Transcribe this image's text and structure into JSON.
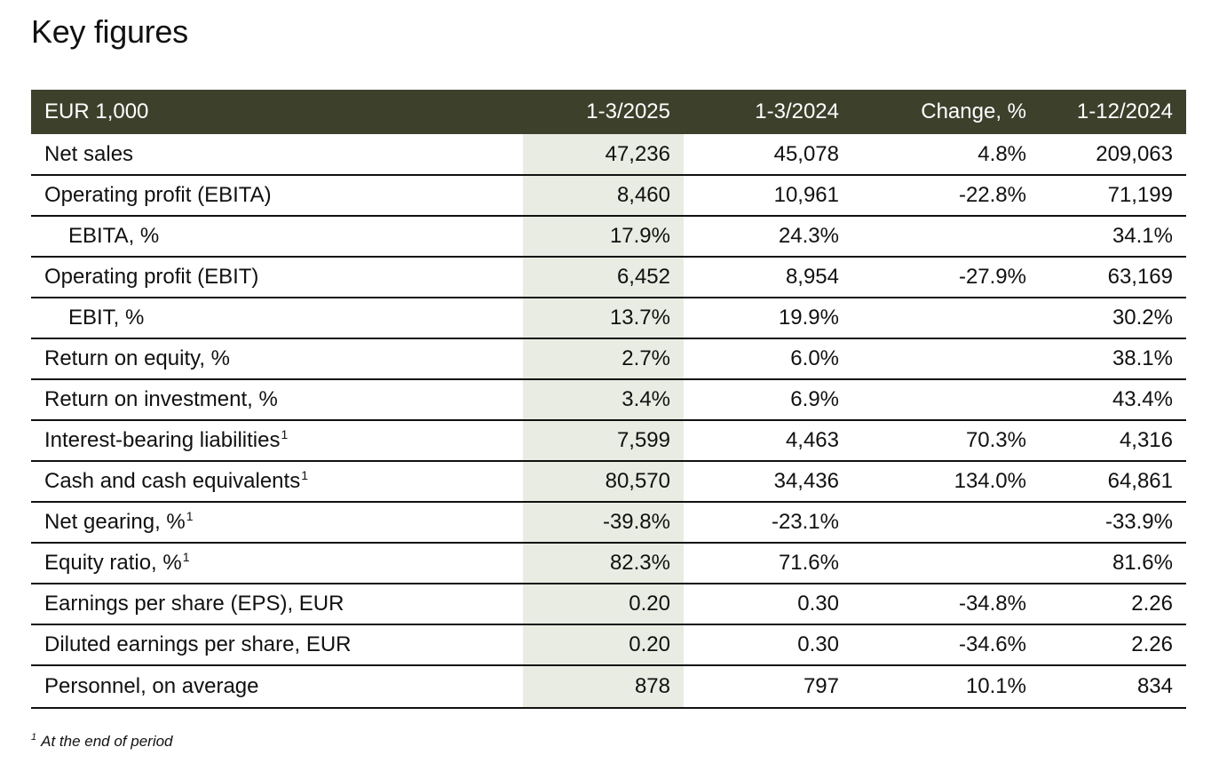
{
  "title": "Key figures",
  "table": {
    "headers": [
      "EUR 1,000",
      "1-3/2025",
      "1-3/2024",
      "Change, %",
      "1-12/2024"
    ],
    "rows": [
      {
        "label": "Net sales",
        "sup": "",
        "indent": false,
        "values": [
          "47,236",
          "45,078",
          "4.8%",
          "209,063"
        ]
      },
      {
        "label": "Operating profit (EBITA)",
        "sup": "",
        "indent": false,
        "values": [
          "8,460",
          "10,961",
          "-22.8%",
          "71,199"
        ]
      },
      {
        "label": "EBITA, %",
        "sup": "",
        "indent": true,
        "values": [
          "17.9%",
          "24.3%",
          "",
          "34.1%"
        ]
      },
      {
        "label": "Operating profit (EBIT)",
        "sup": "",
        "indent": false,
        "values": [
          "6,452",
          "8,954",
          "-27.9%",
          "63,169"
        ]
      },
      {
        "label": "EBIT, %",
        "sup": "",
        "indent": true,
        "values": [
          "13.7%",
          "19.9%",
          "",
          "30.2%"
        ]
      },
      {
        "label": "Return on equity, %",
        "sup": "",
        "indent": false,
        "values": [
          "2.7%",
          "6.0%",
          "",
          "38.1%"
        ]
      },
      {
        "label": "Return on investment, %",
        "sup": "",
        "indent": false,
        "values": [
          "3.4%",
          "6.9%",
          "",
          "43.4%"
        ]
      },
      {
        "label": "Interest-bearing liabilities",
        "sup": "1",
        "indent": false,
        "values": [
          "7,599",
          "4,463",
          "70.3%",
          "4,316"
        ]
      },
      {
        "label": "Cash and cash equivalents",
        "sup": "1",
        "indent": false,
        "values": [
          "80,570",
          "34,436",
          "134.0%",
          "64,861"
        ]
      },
      {
        "label": "Net gearing, %",
        "sup": "1",
        "indent": false,
        "values": [
          "-39.8%",
          "-23.1%",
          "",
          "-33.9%"
        ]
      },
      {
        "label": "Equity ratio, %",
        "sup": "1",
        "indent": false,
        "values": [
          "82.3%",
          "71.6%",
          "",
          "81.6%"
        ]
      },
      {
        "label": "Earnings per share (EPS), EUR",
        "sup": "",
        "indent": false,
        "values": [
          "0.20",
          "0.30",
          "-34.8%",
          "2.26"
        ]
      },
      {
        "label": "Diluted earnings per share, EUR",
        "sup": "",
        "indent": false,
        "values": [
          "0.20",
          "0.30",
          "-34.6%",
          "2.26"
        ]
      },
      {
        "label": "Personnel, on average",
        "sup": "",
        "indent": false,
        "values": [
          "878",
          "797",
          "10.1%",
          "834"
        ]
      }
    ]
  },
  "footnote": {
    "mark": "1",
    "text": "At the end of period"
  },
  "colors": {
    "header_bg": "#3d402b",
    "highlight_column": "#e9ece2"
  }
}
